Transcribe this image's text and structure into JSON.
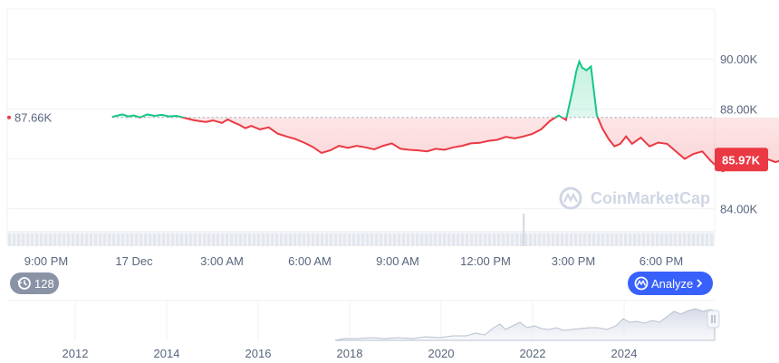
{
  "chart_data": {
    "type": "line",
    "price_axis": {
      "ticks": [
        84000,
        86000,
        88000,
        90000
      ],
      "tick_labels": [
        "84.00K",
        "86.00K",
        "88.00K",
        "90.00K"
      ],
      "range": [
        82500,
        92000
      ]
    },
    "time_axis": {
      "tick_labels": [
        "9:00 PM",
        "17 Dec",
        "3:00 AM",
        "6:00 AM",
        "9:00 AM",
        "12:00 PM",
        "3:00 PM",
        "6:00 PM"
      ]
    },
    "reference": {
      "value": 87660,
      "label": "87.66K"
    },
    "current": {
      "value": 85970,
      "label": "85.97K"
    },
    "colors": {
      "above": "#16c784",
      "below": "#ea3943",
      "reference": "#ea3943"
    },
    "x_hours": [
      -0.75,
      -0.4,
      -0.2,
      0,
      0.2,
      0.45,
      0.7,
      0.95,
      1.2,
      1.45,
      1.7,
      2.0,
      2.2,
      2.45,
      2.7,
      3.0,
      3.2,
      3.4,
      3.6,
      3.8,
      4.0,
      4.3,
      4.6,
      4.9,
      5.2,
      5.5,
      5.8,
      6.1,
      6.4,
      6.7,
      7.0,
      7.3,
      7.6,
      7.9,
      8.2,
      8.5,
      8.8,
      9.1,
      9.4,
      9.7,
      10.0,
      10.3,
      10.6,
      10.9,
      11.2,
      11.5,
      11.8,
      12.1,
      12.4,
      12.7,
      13.0,
      13.3,
      13.6,
      13.9,
      14.2,
      14.5,
      14.75,
      15.0,
      15.1,
      15.2,
      15.3,
      15.45,
      15.6,
      15.8,
      16.0,
      16.2,
      16.4,
      16.6,
      16.8,
      17.0,
      17.3,
      17.6,
      17.9,
      18.2,
      18.5,
      18.8,
      19.1,
      19.4,
      19.7,
      19.9,
      20.1,
      20.4,
      20.75,
      21.0,
      21.3,
      21.6,
      21.9,
      22.2,
      22.5,
      22.6
    ],
    "prices": [
      87680,
      87780,
      87700,
      87740,
      87660,
      87780,
      87720,
      87760,
      87700,
      87720,
      87650,
      87560,
      87520,
      87480,
      87540,
      87440,
      87580,
      87460,
      87360,
      87230,
      87320,
      87180,
      87260,
      87010,
      86900,
      86800,
      86650,
      86480,
      86240,
      86340,
      86520,
      86440,
      86520,
      86460,
      86380,
      86520,
      86620,
      86400,
      86360,
      86340,
      86300,
      86400,
      86360,
      86460,
      86520,
      86620,
      86640,
      86720,
      86760,
      86880,
      86820,
      86900,
      87000,
      87180,
      87520,
      87740,
      87560,
      88900,
      89500,
      89900,
      89650,
      89550,
      89700,
      87740,
      87200,
      86800,
      86500,
      86600,
      86900,
      86600,
      86850,
      86500,
      86650,
      86600,
      86300,
      86000,
      86200,
      86300,
      85900,
      85700,
      85500,
      85700,
      85760,
      85900,
      85870,
      86000,
      85870,
      85970,
      85900,
      85970
    ],
    "volume": [
      3,
      3,
      3,
      3,
      3,
      3,
      3,
      3,
      3,
      3,
      3,
      3,
      3,
      3,
      3,
      3,
      3,
      3,
      3,
      3,
      3,
      3,
      3,
      3,
      3,
      3,
      3,
      3,
      3,
      3,
      3,
      3,
      3,
      3,
      3,
      3,
      3,
      3,
      3,
      3,
      3,
      3,
      3,
      3,
      3,
      3,
      3,
      3,
      3,
      3,
      3,
      3,
      3,
      3,
      3,
      3,
      3,
      3,
      3,
      3,
      3,
      3,
      3,
      3,
      3,
      3,
      3,
      3,
      3,
      3,
      3,
      3,
      3,
      3,
      3,
      3,
      3,
      3,
      3,
      3,
      3,
      3,
      3,
      3,
      3,
      3,
      3,
      3,
      3,
      3
    ],
    "volume_spike_hour": 13.3,
    "history_axis": {
      "tick_labels": [
        "2012",
        "2014",
        "2016",
        "2018",
        "2020",
        "2022",
        "2024"
      ]
    }
  },
  "watermark": "CoinMarketCap",
  "history_button": {
    "label": "128",
    "icon": "history-icon"
  },
  "analyze_button": {
    "label": "Analyze",
    "icon": "cmc-logo-icon",
    "chevron": "chevron-right-icon",
    "color": "#3861fb"
  },
  "navigator_handle_icon": "drag-handle-icon"
}
